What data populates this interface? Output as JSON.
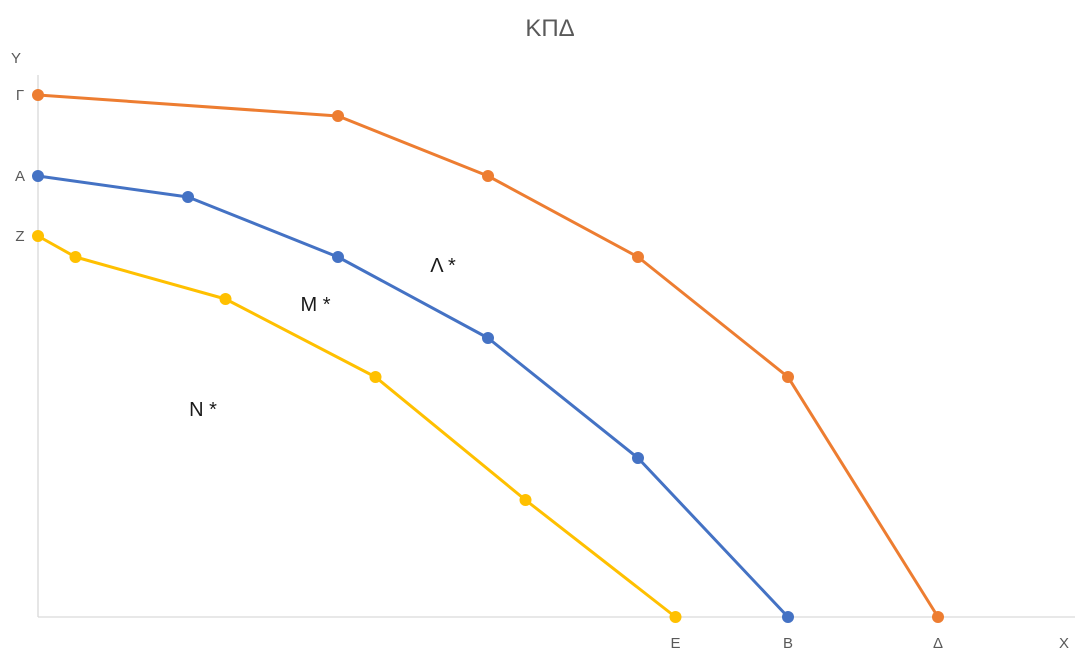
{
  "chart_data": {
    "type": "line",
    "title": "ΚΠΔ",
    "xlabel": "X",
    "ylabel": "Y",
    "xlim": [
      0,
      12
    ],
    "ylim": [
      0,
      10
    ],
    "grid": false,
    "series": [
      {
        "color": "#ED7D31",
        "points": [
          [
            0,
            8.7
          ],
          [
            4,
            8.35
          ],
          [
            6,
            7.35
          ],
          [
            8,
            6.0
          ],
          [
            10,
            4.0
          ],
          [
            12,
            0
          ]
        ]
      },
      {
        "color": "#4472C4",
        "points": [
          [
            0,
            7.35
          ],
          [
            2,
            7.0
          ],
          [
            4,
            6.0
          ],
          [
            6,
            4.65
          ],
          [
            8,
            2.65
          ],
          [
            10,
            0
          ]
        ]
      },
      {
        "color": "#FFC000",
        "points": [
          [
            0,
            6.35
          ],
          [
            0.5,
            6.0
          ],
          [
            2.5,
            5.3
          ],
          [
            4.5,
            4.0
          ],
          [
            6.5,
            1.95
          ],
          [
            8.5,
            0
          ]
        ]
      }
    ],
    "y_tick_labels": [
      {
        "label": "Γ",
        "y": 8.7
      },
      {
        "label": "Α",
        "y": 7.35
      },
      {
        "label": "Ζ",
        "y": 6.35
      }
    ],
    "x_tick_labels": [
      {
        "label": "Ε",
        "x": 8.5
      },
      {
        "label": "Β",
        "x": 10
      },
      {
        "label": "Δ",
        "x": 12
      }
    ],
    "annotations": [
      {
        "text": "Λ *",
        "x": 5.4,
        "y": 5.75
      },
      {
        "text": "Μ *",
        "x": 3.7,
        "y": 5.1
      },
      {
        "text": "Ν *",
        "x": 2.2,
        "y": 3.35
      }
    ]
  }
}
